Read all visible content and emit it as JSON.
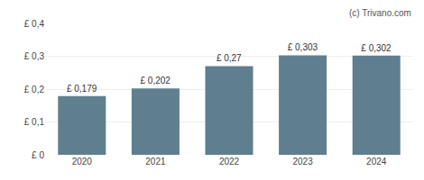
{
  "chart_data": {
    "type": "bar",
    "categories": [
      "2020",
      "2021",
      "2022",
      "2023",
      "2024"
    ],
    "values": [
      0.179,
      0.202,
      0.27,
      0.303,
      0.302
    ],
    "value_labels": [
      "£ 0,179",
      "£ 0,202",
      "£ 0,27",
      "£ 0,303",
      "£ 0,302"
    ],
    "data_labels": true,
    "color": "#5f7f8e",
    "ylim": [
      0,
      0.4
    ],
    "yticks": [
      {
        "value": 0,
        "label": "£ 0"
      },
      {
        "value": 0.1,
        "label": "£ 0,1"
      },
      {
        "value": 0.2,
        "label": "£ 0,2"
      },
      {
        "value": 0.3,
        "label": "£ 0,3"
      },
      {
        "value": 0.4,
        "label": "£ 0,4"
      }
    ],
    "grid": true,
    "annotations": [
      "(c) Trivano.com"
    ]
  }
}
